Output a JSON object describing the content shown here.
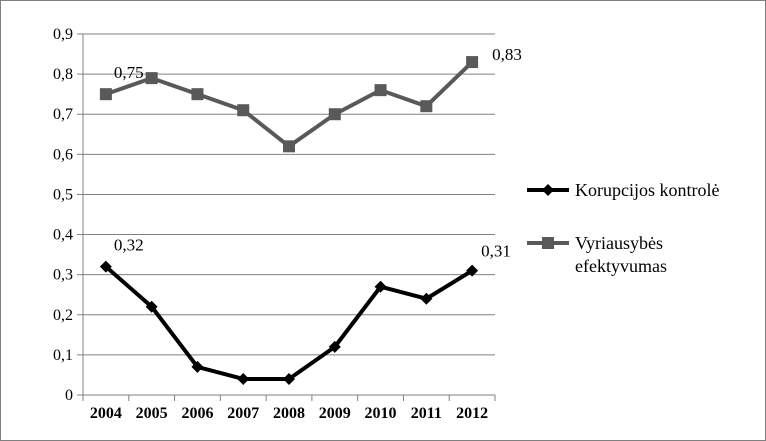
{
  "chart_data": {
    "type": "line",
    "title": "",
    "xlabel": "",
    "ylabel": "",
    "categories": [
      "2004",
      "2005",
      "2006",
      "2007",
      "2008",
      "2009",
      "2010",
      "2011",
      "2012"
    ],
    "ylim": [
      0,
      0.9
    ],
    "yticks": [
      "0",
      "0,1",
      "0,2",
      "0,3",
      "0,4",
      "0,5",
      "0,6",
      "0,7",
      "0,8",
      "0,9"
    ],
    "grid": true,
    "legend_position": "right",
    "series": [
      {
        "name": "Korupcijos kontrolė",
        "values": [
          0.32,
          0.22,
          0.07,
          0.04,
          0.04,
          0.12,
          0.27,
          0.24,
          0.31
        ],
        "color": "#000000",
        "marker": "diamond",
        "labels": [
          {
            "index": 0,
            "text": "0,32"
          },
          {
            "index": 8,
            "text": "0,31"
          }
        ]
      },
      {
        "name": "Vyriausybės efektyvumas",
        "legend_lines": [
          "Vyriausybės",
          "efektyvumas"
        ],
        "values": [
          0.75,
          0.79,
          0.75,
          0.71,
          0.62,
          0.7,
          0.76,
          0.72,
          0.83
        ],
        "color": "#595959",
        "marker": "square",
        "labels": [
          {
            "index": 0,
            "text": "0,75"
          },
          {
            "index": 8,
            "text": "0,83"
          }
        ]
      }
    ]
  }
}
